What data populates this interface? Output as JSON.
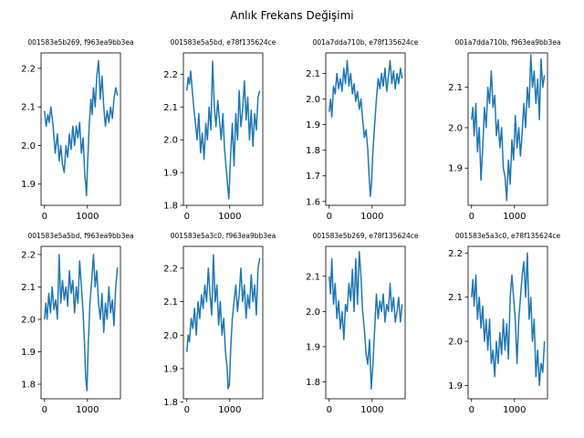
{
  "figure": {
    "title": "Anlık Frekans Değişimi"
  },
  "chart_data": [
    {
      "type": "line",
      "title": "001583e5b269, f963ea9bb3ea",
      "xlabel": "",
      "ylabel": "",
      "xlim": [
        -80,
        1770
      ],
      "ylim": [
        1.845,
        2.24
      ],
      "xticks": [
        0,
        1000
      ],
      "xtick_labels": [
        "0",
        "1000"
      ],
      "yticks": [
        1.9,
        2.0,
        2.1,
        2.2
      ],
      "ytick_labels": [
        "1.9",
        "2.0",
        "2.1",
        "2.2"
      ],
      "color": "#1f77b4",
      "grid": false,
      "series": [
        {
          "x": [
            0,
            40,
            80,
            110,
            150,
            200,
            250,
            300,
            340,
            380,
            420,
            460,
            500,
            540,
            580,
            620,
            660,
            700,
            740,
            780,
            820,
            860,
            900,
            940,
            960,
            980,
            1000,
            1040,
            1080,
            1110,
            1140,
            1180,
            1220,
            1260,
            1300,
            1340,
            1380,
            1420,
            1460,
            1500,
            1540,
            1580,
            1620,
            1660,
            1700
          ],
          "values": [
            2.09,
            2.05,
            2.08,
            2.06,
            2.1,
            2.05,
            1.98,
            2.03,
            1.96,
            2.0,
            1.95,
            1.93,
            2.0,
            1.97,
            2.03,
            1.99,
            2.05,
            2.0,
            2.05,
            2.02,
            2.06,
            1.98,
            2.02,
            1.92,
            1.9,
            1.87,
            1.94,
            2.05,
            2.12,
            2.08,
            2.15,
            2.1,
            2.18,
            2.22,
            2.12,
            2.18,
            2.1,
            2.05,
            2.09,
            2.06,
            2.1,
            2.07,
            2.12,
            2.15,
            2.13
          ]
        }
      ]
    },
    {
      "type": "line",
      "title": "001583e5a5bd, e78f135624ce",
      "xlabel": "",
      "ylabel": "",
      "xlim": [
        -80,
        1770
      ],
      "ylim": [
        1.8,
        2.265
      ],
      "xticks": [
        0,
        1000
      ],
      "xtick_labels": [
        "0",
        "1000"
      ],
      "yticks": [
        1.8,
        1.9,
        2.0,
        2.1,
        2.2
      ],
      "ytick_labels": [
        "1.8",
        "1.9",
        "2.0",
        "2.1",
        "2.2"
      ],
      "color": "#1f77b4",
      "grid": false,
      "series": [
        {
          "x": [
            0,
            30,
            60,
            90,
            120,
            160,
            200,
            240,
            280,
            320,
            360,
            400,
            440,
            480,
            520,
            560,
            600,
            640,
            680,
            720,
            760,
            800,
            840,
            880,
            920,
            950,
            980,
            1020,
            1060,
            1100,
            1140,
            1180,
            1220,
            1260,
            1300,
            1340,
            1380,
            1420,
            1460,
            1500,
            1540,
            1580,
            1620,
            1660,
            1700
          ],
          "values": [
            2.15,
            2.19,
            2.17,
            2.21,
            2.16,
            2.1,
            2.05,
            2.0,
            2.08,
            1.96,
            2.02,
            1.94,
            2.05,
            2.0,
            2.1,
            2.03,
            2.24,
            2.1,
            2.04,
            2.12,
            2.06,
            2.0,
            2.08,
            1.97,
            1.91,
            1.86,
            1.82,
            1.95,
            2.05,
            1.92,
            2.08,
            2.0,
            2.15,
            2.04,
            2.09,
            2.18,
            2.06,
            2.13,
            2.0,
            2.09,
            1.98,
            2.08,
            2.03,
            2.13,
            2.15
          ]
        }
      ]
    },
    {
      "type": "line",
      "title": "001a7dda710b, e78f135624ce",
      "xlabel": "",
      "ylabel": "",
      "xlim": [
        -80,
        1770
      ],
      "ylim": [
        1.585,
        2.18
      ],
      "xticks": [
        0,
        1000
      ],
      "xtick_labels": [
        "0",
        "1000"
      ],
      "yticks": [
        1.6,
        1.7,
        1.8,
        1.9,
        2.0,
        2.1
      ],
      "ytick_labels": [
        "1.6",
        "1.7",
        "1.8",
        "1.9",
        "2.0",
        "2.1"
      ],
      "color": "#1f77b4",
      "grid": false,
      "series": [
        {
          "x": [
            0,
            30,
            60,
            100,
            140,
            180,
            220,
            260,
            300,
            340,
            380,
            420,
            460,
            500,
            540,
            580,
            620,
            660,
            700,
            740,
            780,
            820,
            860,
            900,
            930,
            960,
            990,
            1020,
            1060,
            1100,
            1140,
            1180,
            1220,
            1260,
            1300,
            1340,
            1380,
            1420,
            1460,
            1500,
            1540,
            1580,
            1620,
            1660,
            1700
          ],
          "values": [
            1.95,
            2.0,
            1.93,
            2.05,
            2.02,
            2.1,
            2.04,
            2.08,
            2.03,
            2.12,
            2.06,
            2.15,
            2.05,
            2.1,
            2.02,
            2.06,
            1.99,
            2.03,
            1.96,
            2.0,
            1.92,
            1.85,
            1.88,
            1.8,
            1.7,
            1.62,
            1.68,
            1.8,
            1.9,
            2.0,
            2.08,
            2.04,
            2.1,
            2.05,
            2.12,
            2.03,
            2.09,
            2.15,
            2.06,
            2.11,
            2.04,
            2.1,
            2.06,
            2.12,
            2.08
          ]
        }
      ]
    },
    {
      "type": "line",
      "title": "001a7dda710b, f963ea9bb3ea",
      "xlabel": "",
      "ylabel": "",
      "xlim": [
        -80,
        1770
      ],
      "ylim": [
        1.808,
        2.185
      ],
      "xticks": [
        0,
        1000
      ],
      "xtick_labels": [
        "0",
        "1000"
      ],
      "yticks": [
        1.9,
        2.0,
        2.1
      ],
      "ytick_labels": [
        "1.9",
        "2.0",
        "2.1"
      ],
      "color": "#1f77b4",
      "grid": false,
      "series": [
        {
          "x": [
            0,
            30,
            60,
            100,
            140,
            180,
            220,
            260,
            300,
            340,
            380,
            420,
            460,
            500,
            540,
            580,
            620,
            660,
            700,
            740,
            780,
            820,
            860,
            900,
            940,
            980,
            1020,
            1060,
            1100,
            1140,
            1180,
            1220,
            1260,
            1300,
            1340,
            1380,
            1420,
            1460,
            1500,
            1540,
            1580,
            1620,
            1660,
            1700
          ],
          "values": [
            2.02,
            2.05,
            1.98,
            2.06,
            1.94,
            2.0,
            1.87,
            1.95,
            2.05,
            2.0,
            2.1,
            2.06,
            2.14,
            2.05,
            2.08,
            1.98,
            2.02,
            1.95,
            2.0,
            1.9,
            1.88,
            1.82,
            1.92,
            1.86,
            1.97,
            1.92,
            2.03,
            1.95,
            2.0,
            1.93,
            1.99,
            2.06,
            2.0,
            2.1,
            2.05,
            2.18,
            2.1,
            2.14,
            2.06,
            2.12,
            2.02,
            2.17,
            2.1,
            2.13
          ]
        }
      ]
    },
    {
      "type": "line",
      "title": "001583e5a5bd, f963ea9bb3ea",
      "xlabel": "",
      "ylabel": "",
      "xlim": [
        -80,
        1770
      ],
      "ylim": [
        1.755,
        2.225
      ],
      "xticks": [
        0,
        1000
      ],
      "xtick_labels": [
        "0",
        "1000"
      ],
      "yticks": [
        1.8,
        1.9,
        2.0,
        2.1,
        2.2
      ],
      "ytick_labels": [
        "1.8",
        "1.9",
        "2.0",
        "2.1",
        "2.2"
      ],
      "color": "#1f77b4",
      "grid": false,
      "series": [
        {
          "x": [
            0,
            30,
            60,
            100,
            140,
            180,
            220,
            260,
            300,
            340,
            380,
            420,
            460,
            500,
            540,
            580,
            620,
            660,
            700,
            740,
            780,
            820,
            860,
            900,
            930,
            960,
            990,
            1020,
            1060,
            1100,
            1140,
            1180,
            1220,
            1260,
            1300,
            1340,
            1380,
            1420,
            1460,
            1500,
            1540,
            1580,
            1620,
            1660,
            1700
          ],
          "values": [
            2.0,
            2.05,
            2.0,
            2.08,
            2.02,
            2.1,
            2.03,
            2.06,
            2.0,
            2.2,
            2.05,
            2.12,
            2.06,
            2.1,
            2.04,
            2.15,
            2.08,
            2.12,
            2.02,
            2.1,
            2.05,
            2.18,
            2.1,
            2.02,
            1.93,
            1.82,
            1.78,
            1.92,
            2.05,
            2.12,
            2.2,
            2.1,
            2.15,
            2.05,
            2.0,
            2.08,
            1.96,
            2.05,
            2.0,
            2.1,
            2.02,
            2.06,
            1.98,
            2.1,
            2.16
          ]
        }
      ]
    },
    {
      "type": "line",
      "title": "001583e5a3c0, f963ea9bb3ea",
      "xlabel": "",
      "ylabel": "",
      "xlim": [
        -80,
        1770
      ],
      "ylim": [
        1.81,
        2.265
      ],
      "xticks": [
        0,
        1000
      ],
      "xtick_labels": [
        "0",
        "1000"
      ],
      "yticks": [
        1.8,
        1.9,
        2.0,
        2.1,
        2.2
      ],
      "ytick_labels": [
        "1.8",
        "1.9",
        "2.0",
        "2.1",
        "2.2"
      ],
      "color": "#1f77b4",
      "grid": false,
      "series": [
        {
          "x": [
            0,
            30,
            60,
            100,
            140,
            180,
            220,
            260,
            300,
            340,
            380,
            420,
            460,
            500,
            540,
            580,
            620,
            660,
            700,
            740,
            780,
            820,
            860,
            900,
            940,
            960,
            990,
            1020,
            1060,
            1100,
            1140,
            1180,
            1220,
            1260,
            1300,
            1340,
            1380,
            1420,
            1460,
            1500,
            1540,
            1580,
            1620,
            1660,
            1700
          ],
          "values": [
            1.95,
            2.0,
            1.98,
            2.05,
            2.02,
            2.08,
            2.0,
            2.1,
            2.05,
            2.12,
            2.08,
            2.15,
            2.1,
            2.2,
            2.12,
            2.06,
            2.24,
            2.1,
            2.15,
            2.03,
            2.1,
            2.0,
            2.05,
            1.95,
            1.9,
            1.84,
            1.85,
            1.95,
            2.05,
            2.1,
            2.15,
            2.07,
            2.12,
            2.2,
            2.1,
            2.15,
            2.05,
            2.12,
            2.08,
            2.18,
            2.1,
            2.15,
            2.06,
            2.2,
            2.23
          ]
        }
      ]
    },
    {
      "type": "line",
      "title": "001583e5b269, e78f135624ce",
      "xlabel": "",
      "ylabel": "",
      "xlim": [
        -80,
        1770
      ],
      "ylim": [
        1.752,
        2.185
      ],
      "xticks": [
        0,
        1000
      ],
      "xtick_labels": [
        "0",
        "1000"
      ],
      "yticks": [
        1.8,
        1.9,
        2.0,
        2.1
      ],
      "ytick_labels": [
        "1.8",
        "1.9",
        "2.0",
        "2.1"
      ],
      "color": "#1f77b4",
      "grid": false,
      "series": [
        {
          "x": [
            0,
            30,
            60,
            100,
            140,
            180,
            220,
            260,
            300,
            340,
            380,
            420,
            460,
            500,
            540,
            580,
            620,
            660,
            700,
            740,
            780,
            820,
            860,
            900,
            940,
            980,
            1020,
            1060,
            1100,
            1140,
            1180,
            1220,
            1260,
            1300,
            1340,
            1380,
            1420,
            1460,
            1500,
            1540,
            1580,
            1620,
            1660,
            1700
          ],
          "values": [
            2.1,
            2.05,
            2.15,
            2.02,
            2.08,
            1.98,
            2.03,
            1.95,
            2.0,
            1.92,
            2.02,
            2.0,
            2.08,
            2.03,
            2.12,
            2.0,
            2.15,
            2.02,
            2.17,
            2.1,
            2.0,
            1.95,
            1.88,
            1.85,
            1.92,
            1.78,
            1.85,
            1.95,
            2.05,
            1.98,
            2.03,
            2.0,
            2.05,
            1.97,
            2.02,
            2.0,
            2.08,
            2.0,
            2.04,
            1.97,
            2.0,
            2.04,
            1.97,
            2.02
          ]
        }
      ]
    },
    {
      "type": "line",
      "title": "001583e5a3c0, e78f135624ce",
      "xlabel": "",
      "ylabel": "",
      "xlim": [
        -80,
        1770
      ],
      "ylim": [
        1.87,
        2.215
      ],
      "xticks": [
        0,
        1000
      ],
      "xtick_labels": [
        "0",
        "1000"
      ],
      "yticks": [
        1.9,
        2.0,
        2.1,
        2.2
      ],
      "ytick_labels": [
        "1.9",
        "2.0",
        "2.1",
        "2.2"
      ],
      "color": "#1f77b4",
      "grid": false,
      "series": [
        {
          "x": [
            0,
            30,
            60,
            100,
            140,
            180,
            220,
            260,
            300,
            340,
            380,
            420,
            460,
            500,
            540,
            580,
            620,
            660,
            700,
            740,
            780,
            820,
            860,
            900,
            940,
            980,
            1020,
            1060,
            1100,
            1140,
            1180,
            1220,
            1260,
            1300,
            1340,
            1380,
            1420,
            1460,
            1500,
            1540,
            1580,
            1620,
            1660,
            1700
          ],
          "values": [
            2.1,
            2.14,
            2.08,
            2.15,
            2.05,
            2.1,
            2.03,
            2.08,
            2.0,
            2.05,
            1.98,
            2.05,
            1.95,
            1.98,
            1.92,
            2.0,
            1.95,
            2.02,
            1.97,
            2.05,
            1.98,
            2.04,
            1.96,
            2.1,
            2.15,
            2.1,
            2.05,
            1.95,
            2.05,
            2.1,
            2.15,
            2.18,
            2.1,
            2.2,
            2.05,
            2.1,
            2.0,
            2.05,
            1.92,
            1.98,
            1.9,
            1.95,
            1.93,
            2.0
          ]
        }
      ]
    }
  ]
}
